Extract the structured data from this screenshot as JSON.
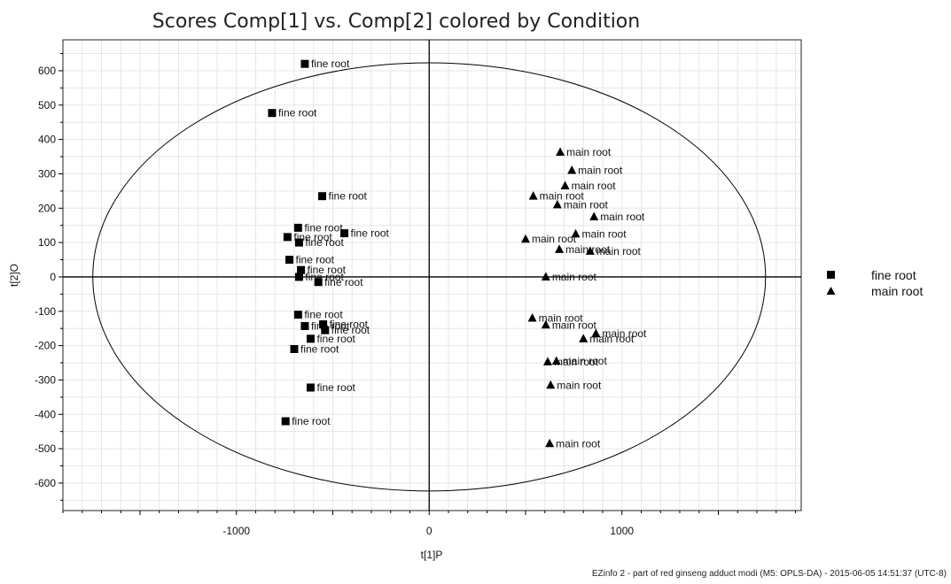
{
  "title": "Scores Comp[1] vs. Comp[2] colored by Condition",
  "footer": "EZinfo 2 - part of red ginseng adduct modi (M5: OPLS-DA) - 2015-06-05 14:51:37 (UTC-8)",
  "chart_data": {
    "type": "scatter",
    "xlabel": "t[1]P",
    "ylabel": "t[2]O",
    "xlim": [
      -1900,
      1930
    ],
    "ylim": [
      -680,
      690
    ],
    "x_ticks": [
      -1000,
      0,
      1000
    ],
    "y_ticks": [
      600,
      500,
      400,
      300,
      200,
      100,
      0,
      -100,
      -200,
      -300,
      -400,
      -500,
      -600
    ],
    "grid": true,
    "legend_position": "right",
    "ellipse": {
      "cx": 0,
      "cy": 0,
      "rx": 1745,
      "ry": 623
    },
    "colors": {
      "fine root": "#000000",
      "main root": "#000000"
    },
    "series": [
      {
        "name": "fine root",
        "marker": "square",
        "points": [
          {
            "x": -645,
            "y": 620,
            "label": "fine root"
          },
          {
            "x": -815,
            "y": 477,
            "label": "fine root"
          },
          {
            "x": -555,
            "y": 235,
            "label": "fine root"
          },
          {
            "x": -680,
            "y": 143,
            "label": "fine root"
          },
          {
            "x": -440,
            "y": 127,
            "label": "fine root"
          },
          {
            "x": -735,
            "y": 116,
            "label": "fine root"
          },
          {
            "x": -675,
            "y": 100,
            "label": "fine root"
          },
          {
            "x": -725,
            "y": 50,
            "label": "fine root"
          },
          {
            "x": -665,
            "y": 20,
            "label": "fine root"
          },
          {
            "x": -675,
            "y": 0,
            "label": "fine root"
          },
          {
            "x": -575,
            "y": -15,
            "label": "fine root"
          },
          {
            "x": -680,
            "y": -110,
            "label": "fine root"
          },
          {
            "x": -645,
            "y": -143,
            "label": "fine root"
          },
          {
            "x": -550,
            "y": -138,
            "label": "fine root"
          },
          {
            "x": -540,
            "y": -155,
            "label": "fine root"
          },
          {
            "x": -615,
            "y": -180,
            "label": "fine root"
          },
          {
            "x": -700,
            "y": -210,
            "label": "fine root"
          },
          {
            "x": -615,
            "y": -322,
            "label": "fine root"
          },
          {
            "x": -745,
            "y": -420,
            "label": "fine root"
          }
        ]
      },
      {
        "name": "main root",
        "marker": "triangle",
        "points": [
          {
            "x": 680,
            "y": 363,
            "label": "main root"
          },
          {
            "x": 740,
            "y": 310,
            "label": "main root"
          },
          {
            "x": 705,
            "y": 265,
            "label": "main root"
          },
          {
            "x": 540,
            "y": 235,
            "label": "main root"
          },
          {
            "x": 665,
            "y": 210,
            "label": "main root"
          },
          {
            "x": 855,
            "y": 175,
            "label": "main root"
          },
          {
            "x": 760,
            "y": 125,
            "label": "main root"
          },
          {
            "x": 500,
            "y": 110,
            "label": "main root"
          },
          {
            "x": 675,
            "y": 80,
            "label": "main root"
          },
          {
            "x": 835,
            "y": 75,
            "label": "main root"
          },
          {
            "x": 605,
            "y": 0,
            "label": "main root"
          },
          {
            "x": 535,
            "y": -120,
            "label": "main root"
          },
          {
            "x": 605,
            "y": -140,
            "label": "main root"
          },
          {
            "x": 865,
            "y": -165,
            "label": "main root"
          },
          {
            "x": 800,
            "y": -180,
            "label": "main root"
          },
          {
            "x": 660,
            "y": -245,
            "label": "main root"
          },
          {
            "x": 615,
            "y": -247,
            "label": "main root"
          },
          {
            "x": 630,
            "y": -315,
            "label": "main root"
          },
          {
            "x": 625,
            "y": -485,
            "label": "main root"
          }
        ]
      }
    ]
  }
}
